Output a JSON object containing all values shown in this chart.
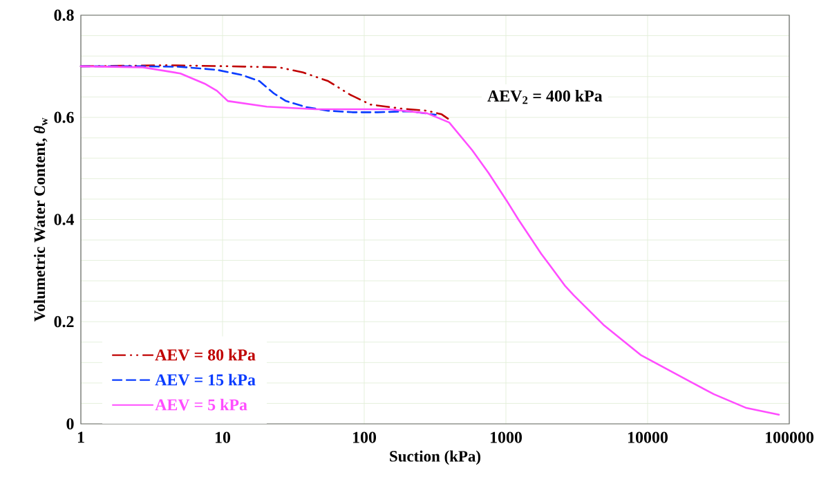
{
  "chart_data": {
    "type": "line",
    "xlabel": "Suction (kPa)",
    "ylabel": "Volumetric Water Content, *θ*$_{w}$",
    "log": "x",
    "grid": true,
    "legend": "bottom left",
    "xlim": [
      1,
      100000
    ],
    "ylim": [
      0,
      0.8
    ],
    "xticks": [
      1,
      10,
      100,
      1000,
      10000,
      100000
    ],
    "yticks": [
      0,
      0.2,
      0.4,
      0.6,
      0.8
    ],
    "annotations": [
      "AEV$_{2}$ = 400 kPa"
    ],
    "series": [
      {
        "name": "AEV = 80 kPa",
        "color": "#c00000",
        "line_style": "dashdotdot",
        "x": [
          1,
          4.1,
          11.2,
          25,
          37,
          55.7,
          80,
          111,
          185,
          278,
          352,
          407
        ],
        "values": [
          0.7,
          0.702,
          0.7,
          0.698,
          0.688,
          0.671,
          0.644,
          0.625,
          0.617,
          0.613,
          0.606,
          0.594
        ]
      },
      {
        "name": "AEV = 15 kPa",
        "color": "#0a3cff",
        "line_style": "dashed",
        "x": [
          1,
          2.75,
          5.04,
          9.14,
          13.7,
          18.2,
          23,
          28,
          38.9,
          55.7,
          83.5,
          124,
          210,
          320
        ],
        "values": [
          0.7,
          0.7,
          0.699,
          0.693,
          0.683,
          0.671,
          0.647,
          0.632,
          0.62,
          0.613,
          0.61,
          0.61,
          0.612,
          0.605
        ]
      },
      {
        "name": "AEV = 5 kPa",
        "color": "#ff4dff",
        "line_style": "solid",
        "x": [
          1,
          2.75,
          5.04,
          7.47,
          9.14,
          10.9,
          20.5,
          45.6,
          151,
          278,
          398,
          577,
          755,
          1012,
          1225,
          1774,
          1985,
          2600,
          3006,
          4877,
          8933,
          19860,
          29380,
          49890,
          84500
        ],
        "values": [
          0.7,
          0.698,
          0.686,
          0.666,
          0.652,
          0.632,
          0.621,
          0.616,
          0.616,
          0.608,
          0.59,
          0.536,
          0.491,
          0.437,
          0.4,
          0.333,
          0.315,
          0.271,
          0.252,
          0.194,
          0.135,
          0.083,
          0.058,
          0.031,
          0.018
        ]
      }
    ]
  }
}
